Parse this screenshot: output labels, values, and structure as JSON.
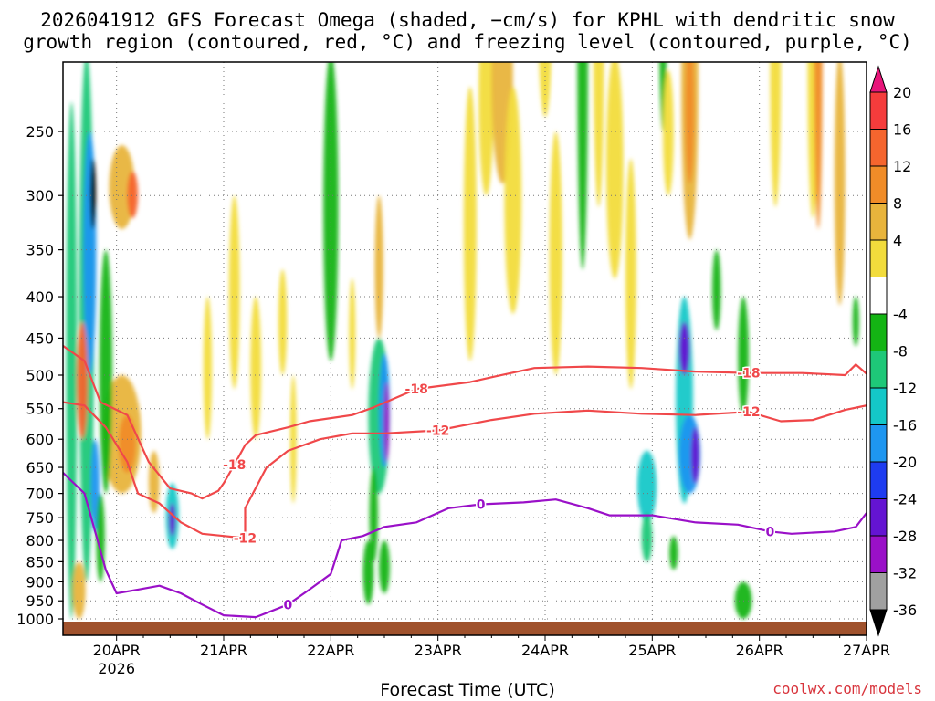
{
  "title_line1": "2026041912 GFS Forecast Omega (shaded, −cm/s) for KPHL with dendritic snow",
  "title_line2": "growth region (contoured, red, °C) and freezing level (contoured, purple, °C)",
  "xlabel": "Forecast Time (UTC)",
  "credit": "coolwx.com/models",
  "colors": {
    "red_contour": "#f0484a",
    "purple_contour": "#9a10c8",
    "ground": "#a0522d",
    "credit": "#d8343c"
  },
  "chart_data": {
    "type": "heatmap",
    "title": "2026041912 GFS Forecast Omega (shaded, −cm/s) for KPHL with dendritic snow growth region (contoured, red, °C) and freezing level (contoured, purple, °C)",
    "xlabel": "Forecast Time (UTC)",
    "ylabel": "",
    "x_ticks": [
      "20APR\n2026",
      "21APR",
      "22APR",
      "23APR",
      "24APR",
      "25APR",
      "26APR",
      "27APR"
    ],
    "y_levels": [
      250,
      300,
      350,
      400,
      450,
      500,
      550,
      600,
      650,
      700,
      750,
      800,
      850,
      900,
      950,
      1000
    ],
    "y_scale": "log-pressure",
    "colorbar": {
      "ticks": [
        20,
        16,
        12,
        8,
        4,
        -4,
        -8,
        -12,
        -16,
        -20,
        -24,
        -28,
        -32,
        -36
      ],
      "colors": [
        "#e8157a",
        "#f53c3c",
        "#f5652e",
        "#f08c28",
        "#e8b43c",
        "#f2dc3c",
        "#ffffff",
        "#14b414",
        "#1ec878",
        "#14c8c8",
        "#1e96f0",
        "#1e3cf0",
        "#6414d2",
        "#9a10c8",
        "#a0a0a0",
        "#000000"
      ]
    },
    "contours": [
      {
        "label": "-18",
        "color": "red",
        "points": [
          [
            19.5,
            460
          ],
          [
            19.7,
            480
          ],
          [
            19.85,
            540
          ],
          [
            20.1,
            560
          ],
          [
            20.3,
            640
          ],
          [
            20.5,
            690
          ],
          [
            20.7,
            700
          ],
          [
            20.8,
            710
          ],
          [
            20.95,
            695
          ],
          [
            21.0,
            680
          ],
          [
            21.1,
            645
          ],
          [
            21.2,
            610
          ],
          [
            21.3,
            593
          ],
          [
            21.6,
            580
          ],
          [
            21.8,
            570
          ],
          [
            22.2,
            560
          ],
          [
            22.4,
            548
          ],
          [
            22.8,
            520
          ],
          [
            23.3,
            510
          ],
          [
            23.5,
            503
          ],
          [
            23.9,
            490
          ],
          [
            24.4,
            488
          ],
          [
            24.9,
            490
          ],
          [
            25.4,
            495
          ],
          [
            25.9,
            497
          ],
          [
            26.4,
            497
          ],
          [
            26.8,
            500
          ],
          [
            26.9,
            485
          ],
          [
            27.0,
            498
          ]
        ]
      },
      {
        "label": "-12",
        "color": "red",
        "points": [
          [
            19.5,
            540
          ],
          [
            19.7,
            545
          ],
          [
            19.9,
            580
          ],
          [
            20.1,
            640
          ],
          [
            20.2,
            700
          ],
          [
            20.4,
            720
          ],
          [
            20.6,
            760
          ],
          [
            20.8,
            785
          ],
          [
            21.0,
            790
          ],
          [
            21.2,
            795
          ],
          [
            21.2,
            730
          ],
          [
            21.4,
            650
          ],
          [
            21.6,
            620
          ],
          [
            21.9,
            600
          ],
          [
            22.2,
            590
          ],
          [
            22.5,
            590
          ],
          [
            23.0,
            585
          ],
          [
            23.5,
            568
          ],
          [
            23.9,
            558
          ],
          [
            24.4,
            553
          ],
          [
            24.9,
            558
          ],
          [
            25.4,
            560
          ],
          [
            25.9,
            555
          ],
          [
            26.2,
            570
          ],
          [
            26.5,
            568
          ],
          [
            26.8,
            552
          ],
          [
            27.0,
            545
          ]
        ]
      },
      {
        "label": "0",
        "color": "purple",
        "points": [
          [
            19.5,
            660
          ],
          [
            19.7,
            700
          ],
          [
            19.8,
            780
          ],
          [
            19.9,
            870
          ],
          [
            20.0,
            930
          ],
          [
            20.2,
            920
          ],
          [
            20.4,
            910
          ],
          [
            20.6,
            930
          ],
          [
            20.8,
            960
          ],
          [
            21.0,
            990
          ],
          [
            21.3,
            995
          ],
          [
            21.6,
            960
          ],
          [
            21.8,
            920
          ],
          [
            22.0,
            880
          ],
          [
            22.1,
            800
          ],
          [
            22.3,
            790
          ],
          [
            22.5,
            770
          ],
          [
            22.8,
            760
          ],
          [
            23.1,
            730
          ],
          [
            23.4,
            722
          ],
          [
            23.8,
            718
          ],
          [
            24.1,
            712
          ],
          [
            24.4,
            730
          ],
          [
            24.6,
            745
          ],
          [
            25.0,
            745
          ],
          [
            25.4,
            760
          ],
          [
            25.8,
            765
          ],
          [
            26.1,
            780
          ],
          [
            26.3,
            785
          ],
          [
            26.7,
            780
          ],
          [
            26.9,
            770
          ],
          [
            27.0,
            740
          ]
        ]
      }
    ]
  }
}
